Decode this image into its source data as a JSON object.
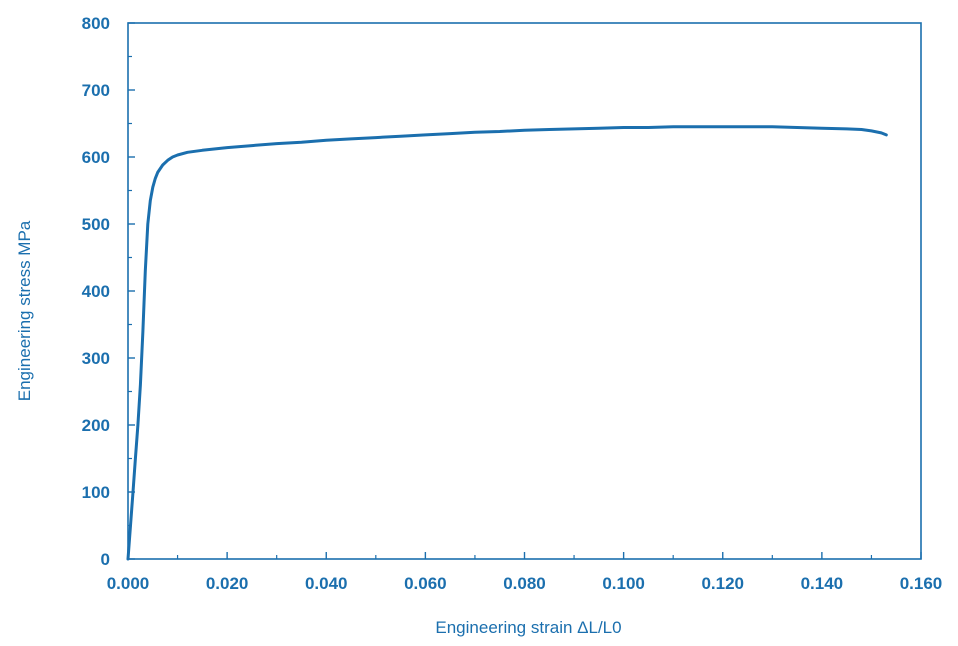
{
  "chart_data": {
    "type": "line",
    "title": "",
    "xlabel": "Engineering strain ΔL/L0",
    "ylabel": "Engineering stress MPa",
    "xlim": [
      0,
      0.16
    ],
    "ylim": [
      0,
      800
    ],
    "x_ticks": [
      "0.000",
      "0.020",
      "0.040",
      "0.060",
      "0.080",
      "0.100",
      "0.120",
      "0.140",
      "0.160"
    ],
    "y_ticks": [
      "0",
      "100",
      "200",
      "300",
      "400",
      "500",
      "600",
      "700",
      "800"
    ],
    "x_tick_values": [
      0,
      0.02,
      0.04,
      0.06,
      0.08,
      0.1,
      0.12,
      0.14,
      0.16
    ],
    "y_tick_values": [
      0,
      100,
      200,
      300,
      400,
      500,
      600,
      700,
      800
    ],
    "x_minor_step": 0.01,
    "y_minor_step": 50,
    "grid": false,
    "legend": "none",
    "color": "#1b6fae",
    "series": [
      {
        "x": [
          0,
          0.0005,
          0.001,
          0.0015,
          0.002,
          0.0025,
          0.003,
          0.0035,
          0.004,
          0.0045,
          0.005,
          0.0055,
          0.006,
          0.007,
          0.008,
          0.009,
          0.01,
          0.012,
          0.015,
          0.02,
          0.025,
          0.03,
          0.035,
          0.04,
          0.045,
          0.05,
          0.055,
          0.06,
          0.065,
          0.07,
          0.075,
          0.08,
          0.085,
          0.09,
          0.095,
          0.1,
          0.105,
          0.11,
          0.115,
          0.12,
          0.125,
          0.13,
          0.135,
          0.14,
          0.145,
          0.148,
          0.15,
          0.152,
          0.153
        ],
        "y": [
          0,
          50,
          100,
          150,
          200,
          260,
          340,
          430,
          500,
          535,
          555,
          568,
          577,
          588,
          595,
          600,
          603,
          607,
          610,
          614,
          617,
          620,
          622,
          625,
          627,
          629,
          631,
          633,
          635,
          637,
          638,
          640,
          641,
          642,
          643,
          644,
          644,
          645,
          645,
          645,
          645,
          645,
          644,
          643,
          642,
          641,
          639,
          636,
          633
        ]
      }
    ]
  }
}
